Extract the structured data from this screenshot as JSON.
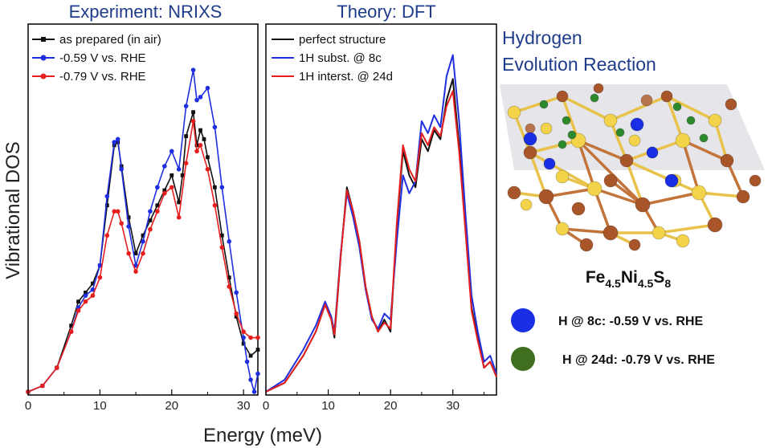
{
  "chart_data": [
    {
      "type": "line",
      "title": "Experiment: NRIXS",
      "xlabel": "Energy (meV)",
      "ylabel": "Vibrational DOS",
      "xlim": [
        0,
        32
      ],
      "xticks": [
        0,
        10,
        20,
        30
      ],
      "series": [
        {
          "name": "as prepared (in air)",
          "color": "#111111",
          "marker": "square",
          "points": [
            [
              0,
              0
            ],
            [
              2,
              0.02
            ],
            [
              4,
              0.08
            ],
            [
              6,
              0.22
            ],
            [
              7,
              0.3
            ],
            [
              8,
              0.33
            ],
            [
              9,
              0.36
            ],
            [
              10,
              0.42
            ],
            [
              11,
              0.62
            ],
            [
              12,
              0.82
            ],
            [
              12.5,
              0.83
            ],
            [
              13,
              0.75
            ],
            [
              14,
              0.58
            ],
            [
              15,
              0.46
            ],
            [
              16,
              0.52
            ],
            [
              17,
              0.57
            ],
            [
              18,
              0.62
            ],
            [
              19,
              0.67
            ],
            [
              20,
              0.72
            ],
            [
              21,
              0.63
            ],
            [
              21.5,
              0.72
            ],
            [
              22,
              0.85
            ],
            [
              23,
              0.93
            ],
            [
              23.5,
              0.82
            ],
            [
              24,
              0.87
            ],
            [
              24.5,
              0.84
            ],
            [
              25,
              0.78
            ],
            [
              26,
              0.68
            ],
            [
              27,
              0.52
            ],
            [
              28,
              0.38
            ],
            [
              29,
              0.25
            ],
            [
              30,
              0.16
            ],
            [
              31,
              0.12
            ],
            [
              32,
              0.14
            ]
          ]
        },
        {
          "name": "-0.59 V vs. RHE",
          "color": "#1f2fe0",
          "marker": "circle",
          "points": [
            [
              0,
              0
            ],
            [
              2,
              0.02
            ],
            [
              4,
              0.08
            ],
            [
              6,
              0.2
            ],
            [
              7,
              0.28
            ],
            [
              8,
              0.32
            ],
            [
              9,
              0.34
            ],
            [
              10,
              0.42
            ],
            [
              11,
              0.65
            ],
            [
              12,
              0.83
            ],
            [
              12.5,
              0.84
            ],
            [
              13,
              0.74
            ],
            [
              14,
              0.55
            ],
            [
              15,
              0.42
            ],
            [
              16,
              0.5
            ],
            [
              17,
              0.6
            ],
            [
              18,
              0.68
            ],
            [
              19,
              0.75
            ],
            [
              20,
              0.8
            ],
            [
              21,
              0.74
            ],
            [
              22,
              0.95
            ],
            [
              23,
              1.07
            ],
            [
              23.5,
              0.97
            ],
            [
              24,
              0.98
            ],
            [
              25,
              1.01
            ],
            [
              26,
              0.88
            ],
            [
              27,
              0.68
            ],
            [
              28,
              0.5
            ],
            [
              29,
              0.33
            ],
            [
              30,
              0.18
            ],
            [
              30.5,
              0.1
            ],
            [
              31,
              0.04
            ],
            [
              31.5,
              0.0
            ],
            [
              32,
              0.06
            ]
          ]
        },
        {
          "name": "-0.79 V vs. RHE",
          "color": "#e61e1e",
          "marker": "circle",
          "points": [
            [
              0,
              0
            ],
            [
              2,
              0.02
            ],
            [
              4,
              0.08
            ],
            [
              6,
              0.2
            ],
            [
              7,
              0.27
            ],
            [
              8,
              0.3
            ],
            [
              9,
              0.32
            ],
            [
              10,
              0.38
            ],
            [
              11,
              0.52
            ],
            [
              12,
              0.6
            ],
            [
              12.5,
              0.6
            ],
            [
              13,
              0.56
            ],
            [
              14,
              0.46
            ],
            [
              15,
              0.4
            ],
            [
              16,
              0.46
            ],
            [
              17,
              0.54
            ],
            [
              18,
              0.6
            ],
            [
              19,
              0.66
            ],
            [
              20,
              0.68
            ],
            [
              21,
              0.58
            ],
            [
              22,
              0.76
            ],
            [
              23,
              0.9
            ],
            [
              23.5,
              0.8
            ],
            [
              24,
              0.82
            ],
            [
              25,
              0.74
            ],
            [
              26,
              0.62
            ],
            [
              27,
              0.48
            ],
            [
              28,
              0.35
            ],
            [
              29,
              0.26
            ],
            [
              30,
              0.2
            ],
            [
              31,
              0.18
            ],
            [
              32,
              0.18
            ]
          ]
        }
      ]
    },
    {
      "type": "line",
      "title": "Theory: DFT",
      "xlabel": "Energy (meV)",
      "xlim": [
        0,
        37
      ],
      "xticks": [
        0,
        10,
        20,
        30
      ],
      "series": [
        {
          "name": "perfect structure",
          "color": "#111111",
          "points": [
            [
              0,
              0
            ],
            [
              3,
              0.03
            ],
            [
              6,
              0.12
            ],
            [
              8,
              0.2
            ],
            [
              9.5,
              0.29
            ],
            [
              10.5,
              0.24
            ],
            [
              11,
              0.18
            ],
            [
              12,
              0.45
            ],
            [
              13,
              0.68
            ],
            [
              14,
              0.6
            ],
            [
              15,
              0.5
            ],
            [
              16,
              0.35
            ],
            [
              17,
              0.25
            ],
            [
              18,
              0.2
            ],
            [
              19,
              0.24
            ],
            [
              20,
              0.2
            ],
            [
              21,
              0.55
            ],
            [
              22,
              0.8
            ],
            [
              23,
              0.72
            ],
            [
              24,
              0.68
            ],
            [
              25,
              0.84
            ],
            [
              26,
              0.8
            ],
            [
              27,
              0.87
            ],
            [
              28,
              0.84
            ],
            [
              29,
              0.97
            ],
            [
              30,
              1.04
            ],
            [
              31,
              0.82
            ],
            [
              32,
              0.55
            ],
            [
              33,
              0.28
            ],
            [
              34,
              0.18
            ],
            [
              35,
              0.08
            ],
            [
              36,
              0.1
            ],
            [
              37,
              0.05
            ]
          ]
        },
        {
          "name": "1H subst. @ 8c",
          "color": "#1f2fe0",
          "points": [
            [
              0,
              0
            ],
            [
              3,
              0.04
            ],
            [
              6,
              0.14
            ],
            [
              8,
              0.22
            ],
            [
              9.5,
              0.3
            ],
            [
              10.5,
              0.25
            ],
            [
              11,
              0.2
            ],
            [
              12,
              0.46
            ],
            [
              13,
              0.66
            ],
            [
              14,
              0.58
            ],
            [
              15,
              0.48
            ],
            [
              16,
              0.34
            ],
            [
              17,
              0.24
            ],
            [
              18,
              0.21
            ],
            [
              19,
              0.26
            ],
            [
              20,
              0.24
            ],
            [
              21,
              0.5
            ],
            [
              22,
              0.72
            ],
            [
              23,
              0.66
            ],
            [
              24,
              0.7
            ],
            [
              25,
              0.9
            ],
            [
              26,
              0.86
            ],
            [
              27,
              0.92
            ],
            [
              28,
              0.88
            ],
            [
              29,
              1.05
            ],
            [
              30,
              1.12
            ],
            [
              31,
              0.9
            ],
            [
              32,
              0.6
            ],
            [
              33,
              0.32
            ],
            [
              34,
              0.2
            ],
            [
              35,
              0.1
            ],
            [
              36,
              0.12
            ],
            [
              37,
              0.06
            ]
          ]
        },
        {
          "name": "1H interst. @ 24d",
          "color": "#e61e1e",
          "points": [
            [
              0,
              0
            ],
            [
              3,
              0.03
            ],
            [
              6,
              0.12
            ],
            [
              8,
              0.2
            ],
            [
              9.5,
              0.29
            ],
            [
              10.5,
              0.24
            ],
            [
              11,
              0.19
            ],
            [
              12,
              0.45
            ],
            [
              13,
              0.67
            ],
            [
              14,
              0.6
            ],
            [
              15,
              0.5
            ],
            [
              16,
              0.35
            ],
            [
              17,
              0.25
            ],
            [
              18,
              0.2
            ],
            [
              19,
              0.23
            ],
            [
              20,
              0.21
            ],
            [
              21,
              0.56
            ],
            [
              22,
              0.82
            ],
            [
              23,
              0.74
            ],
            [
              24,
              0.7
            ],
            [
              25,
              0.86
            ],
            [
              26,
              0.82
            ],
            [
              27,
              0.88
            ],
            [
              28,
              0.85
            ],
            [
              29,
              0.95
            ],
            [
              30,
              1.0
            ],
            [
              31,
              0.8
            ],
            [
              32,
              0.54
            ],
            [
              33,
              0.27
            ],
            [
              34,
              0.17
            ],
            [
              35,
              0.08
            ],
            [
              36,
              0.1
            ],
            [
              37,
              0.05
            ]
          ]
        }
      ]
    }
  ],
  "side": {
    "title_line1": "Hydrogen",
    "title_line2": "Evolution Reaction",
    "formula_parts": [
      "Fe",
      "4.5",
      "Ni",
      "4.5",
      "S",
      "8"
    ],
    "sites": [
      {
        "label": "H @ 8c: -0.59 V vs. RHE",
        "color": "#1a2ee6"
      },
      {
        "label": "H @ 24d: -0.79 V vs. RHE",
        "color": "#3f6e1f"
      }
    ],
    "atom_colors": {
      "iron": "#a8552a",
      "sulfur": "#f3d34a",
      "nickel": "#b8744a",
      "hydrogen-8c": "#1a2ee6",
      "hydrogen-24d": "#2c8a2c"
    }
  }
}
